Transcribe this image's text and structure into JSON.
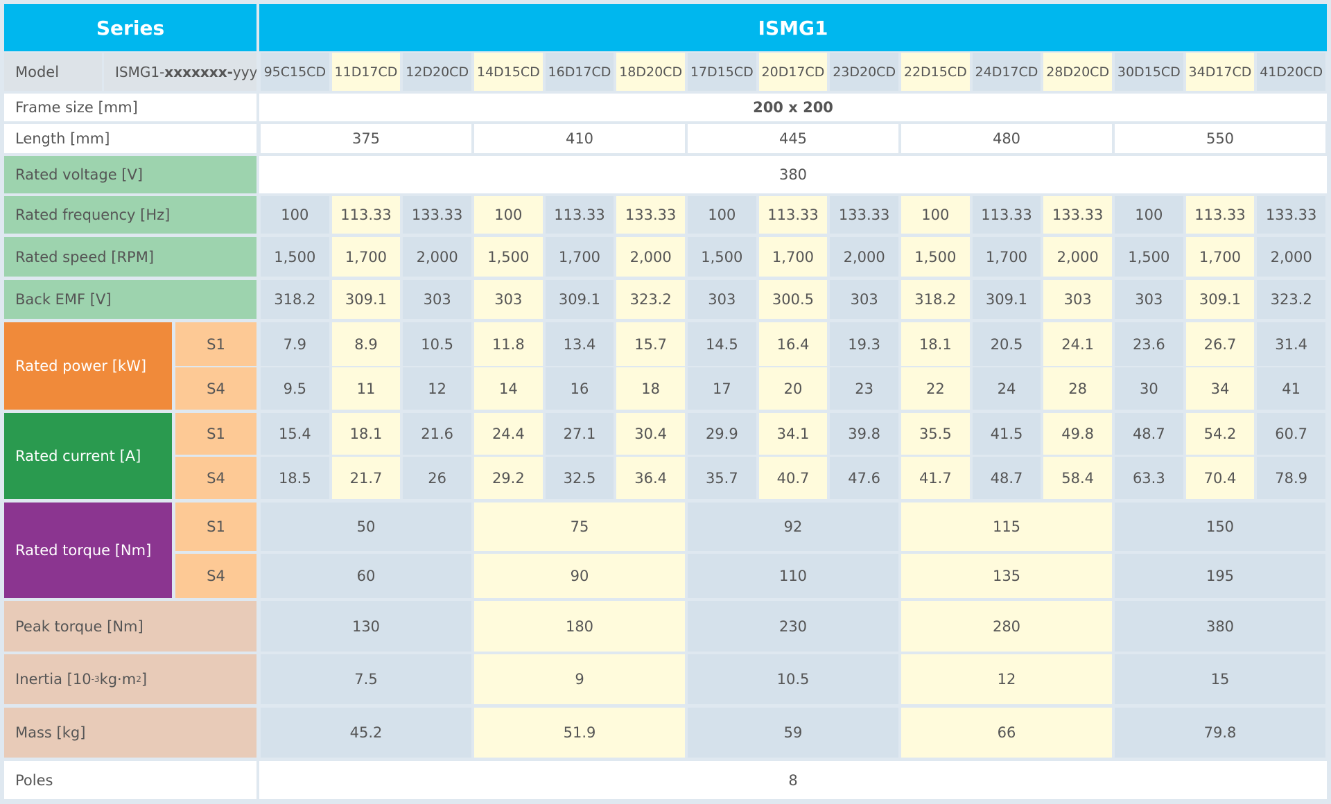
{
  "header": {
    "series_label": "Series",
    "series_value": "ISMG1"
  },
  "model": {
    "label": "Model",
    "code_prefix": "ISMG1-",
    "code_bold": "xxxxxxx-",
    "code_suffix": "yyyyFA",
    "names": [
      "95C15CD",
      "11D17CD",
      "12D20CD",
      "14D15CD",
      "16D17CD",
      "18D20CD",
      "17D15CD",
      "20D17CD",
      "23D20CD",
      "22D15CD",
      "24D17CD",
      "28D20CD",
      "30D15CD",
      "34D17CD",
      "41D20CD"
    ]
  },
  "rows": {
    "frame_size": {
      "label": "Frame size [mm]",
      "value": "200 x 200"
    },
    "length": {
      "label": "Length [mm]",
      "values": [
        375,
        410,
        445,
        480,
        550
      ]
    },
    "rated_voltage": {
      "label": "Rated voltage [V]",
      "value": 380
    },
    "rated_frequency": {
      "label": "Rated frequency [Hz]",
      "values": [
        100,
        113.33,
        133.33,
        100,
        113.33,
        133.33,
        100,
        113.33,
        133.33,
        100,
        113.33,
        133.33,
        100,
        113.33,
        133.33
      ]
    },
    "rated_speed": {
      "label": "Rated speed [RPM]",
      "values": [
        "1,500",
        "1,700",
        "2,000",
        "1,500",
        "1,700",
        "2,000",
        "1,500",
        "1,700",
        "2,000",
        "1,500",
        "1,700",
        "2,000",
        "1,500",
        "1,700",
        "2,000"
      ]
    },
    "back_emf": {
      "label": "Back EMF [V]",
      "values": [
        318.2,
        309.1,
        303,
        303,
        309.1,
        323.2,
        303,
        300.5,
        303,
        318.2,
        309.1,
        303,
        303,
        309.1,
        323.2
      ]
    },
    "rated_power": {
      "label": "Rated power [kW]",
      "s1": {
        "label": "S1",
        "values": [
          7.9,
          8.9,
          10.5,
          11.8,
          13.4,
          15.7,
          14.5,
          16.4,
          19.3,
          18.1,
          20.5,
          24.1,
          23.6,
          26.7,
          31.4
        ]
      },
      "s4": {
        "label": "S4",
        "values": [
          9.5,
          11,
          12,
          14,
          16,
          18,
          17,
          20,
          23,
          22,
          24,
          28,
          30,
          34,
          41
        ]
      }
    },
    "rated_current": {
      "label": "Rated current [A]",
      "s1": {
        "label": "S1",
        "values": [
          15.4,
          18.1,
          21.6,
          24.4,
          27.1,
          30.4,
          29.9,
          34.1,
          39.8,
          35.5,
          41.5,
          49.8,
          48.7,
          54.2,
          60.7
        ]
      },
      "s4": {
        "label": "S4",
        "values": [
          18.5,
          21.7,
          26,
          29.2,
          32.5,
          36.4,
          35.7,
          40.7,
          47.6,
          41.7,
          48.7,
          58.4,
          63.3,
          70.4,
          78.9
        ]
      }
    },
    "rated_torque": {
      "label": "Rated  torque [Nm]",
      "s1": {
        "label": "S1",
        "values": [
          50,
          75,
          92,
          115,
          150
        ]
      },
      "s4": {
        "label": "S4",
        "values": [
          60,
          90,
          110,
          135,
          195
        ]
      }
    },
    "peak_torque": {
      "label": "Peak torque [Nm]",
      "values": [
        130,
        180,
        230,
        280,
        380
      ]
    },
    "inertia": {
      "label_parts": [
        "Inertia [10",
        "-3",
        "kg·m",
        "2",
        "]"
      ],
      "values": [
        7.5,
        9,
        10.5,
        12,
        15
      ]
    },
    "mass": {
      "label": "Mass [kg]",
      "values": [
        45.2,
        51.9,
        59,
        66,
        79.8
      ]
    },
    "poles": {
      "label": "Poles",
      "value": 8
    }
  }
}
